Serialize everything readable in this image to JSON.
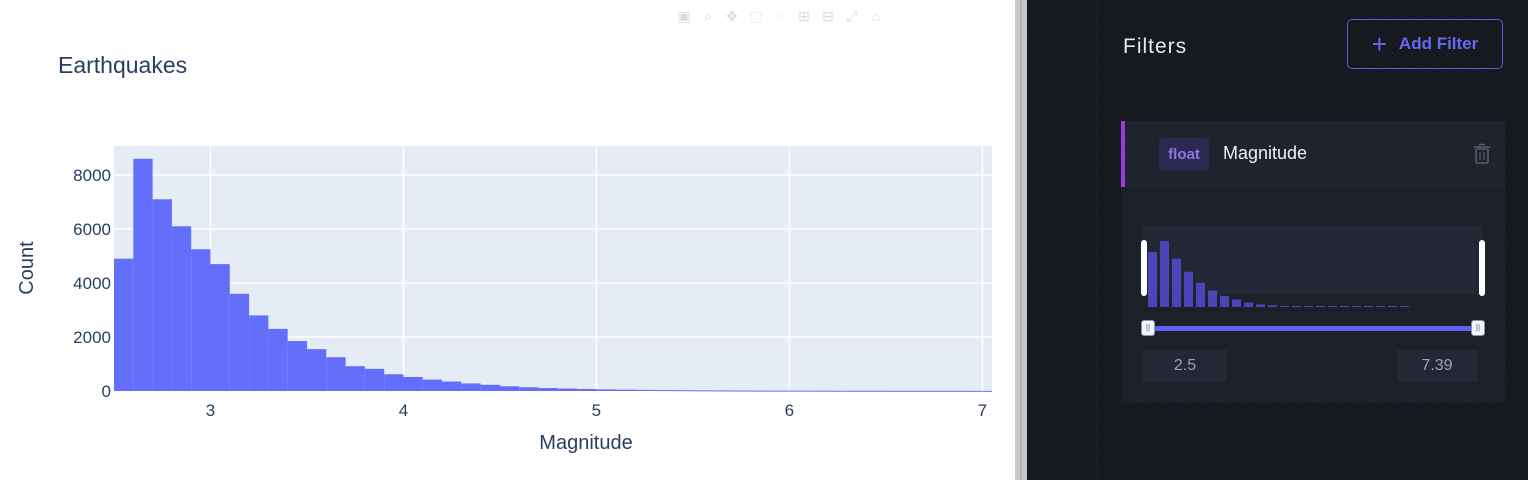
{
  "chart_data": {
    "type": "bar",
    "title": "Earthquakes",
    "xlabel": "Magnitude",
    "ylabel": "Count",
    "bin_width": 0.1,
    "x_start": 2.5,
    "xlim": [
      2.5,
      7.05
    ],
    "ylim": [
      0,
      9000
    ],
    "x_ticks": [
      3,
      4,
      5,
      6,
      7
    ],
    "y_ticks": [
      0,
      2000,
      4000,
      6000,
      8000
    ],
    "values": [
      4900,
      8600,
      7100,
      6100,
      5250,
      4700,
      3600,
      2800,
      2300,
      1850,
      1550,
      1250,
      920,
      820,
      620,
      520,
      420,
      350,
      280,
      230,
      175,
      140,
      110,
      90,
      75,
      60,
      50,
      42,
      35,
      28,
      24,
      20,
      17,
      15,
      13,
      12,
      11,
      10,
      9,
      9,
      8,
      8,
      7,
      7,
      6,
      5
    ],
    "bar_color": "#636efa",
    "plot_bg": "#e5ecf6",
    "grid": true
  },
  "modebar": {
    "icons": [
      "camera-icon",
      "zoom-icon",
      "pan-icon",
      "box-select-icon",
      "lasso-icon",
      "zoom-in-icon",
      "zoom-out-icon",
      "autoscale-icon",
      "reset-axes-icon"
    ]
  },
  "filters_panel": {
    "title": "Filters",
    "add_button_label": "Add Filter",
    "accent": "#5d60f4",
    "filter": {
      "type_tag": "float",
      "field_name": "Magnitude",
      "min_value": "2.5",
      "max_value": "7.39",
      "mini_hist": [
        2.5,
        3.0,
        2.2,
        1.6,
        1.1,
        0.75,
        0.5,
        0.34,
        0.2,
        0.12,
        0.08,
        0.05,
        0.04,
        0.03,
        0.025,
        0.02,
        0.018,
        0.016,
        0.015,
        0.014,
        0.013,
        0.012
      ]
    }
  }
}
